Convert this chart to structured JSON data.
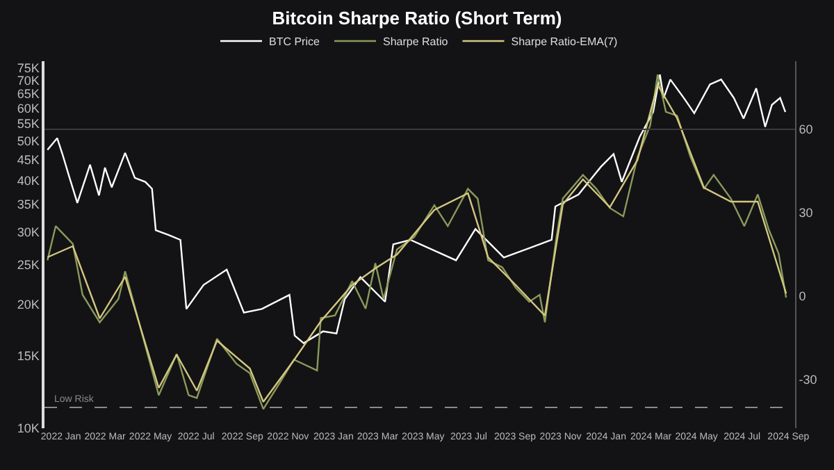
{
  "chart_data": {
    "type": "line",
    "title": "Bitcoin Sharpe Ratio (Short Term)",
    "xlim": [
      "2021-12-10",
      "2024-09-10"
    ],
    "xticks": [
      {
        "value": "2022-01-01",
        "label": "2022 Jan"
      },
      {
        "value": "2022-03-01",
        "label": "2022 Mar"
      },
      {
        "value": "2022-05-01",
        "label": "2022 May"
      },
      {
        "value": "2022-07-01",
        "label": "2022 Jul"
      },
      {
        "value": "2022-09-01",
        "label": "2022 Sep"
      },
      {
        "value": "2022-11-01",
        "label": "2022 Nov"
      },
      {
        "value": "2023-01-01",
        "label": "2023 Jan"
      },
      {
        "value": "2023-03-01",
        "label": "2023 Mar"
      },
      {
        "value": "2023-05-01",
        "label": "2023 May"
      },
      {
        "value": "2023-07-01",
        "label": "2023 Jul"
      },
      {
        "value": "2023-09-01",
        "label": "2023 Sep"
      },
      {
        "value": "2023-11-01",
        "label": "2023 Nov"
      },
      {
        "value": "2024-01-01",
        "label": "2024 Jan"
      },
      {
        "value": "2024-03-01",
        "label": "2024 Mar"
      },
      {
        "value": "2024-05-01",
        "label": "2024 May"
      },
      {
        "value": "2024-07-01",
        "label": "2024 Jul"
      },
      {
        "value": "2024-09-01",
        "label": "2024 Sep"
      }
    ],
    "log": true,
    "ylim": [
      10000,
      78000
    ],
    "yticks": [
      {
        "value": 10000,
        "label": "10K"
      },
      {
        "value": 15000,
        "label": "15K"
      },
      {
        "value": 20000,
        "label": "20K"
      },
      {
        "value": 25000,
        "label": "25K"
      },
      {
        "value": 30000,
        "label": "30K"
      },
      {
        "value": 35000,
        "label": "35K"
      },
      {
        "value": 40000,
        "label": "40K"
      },
      {
        "value": 45000,
        "label": "45K"
      },
      {
        "value": 50000,
        "label": "50K"
      },
      {
        "value": 55000,
        "label": "55K"
      },
      {
        "value": 60000,
        "label": "60K"
      },
      {
        "value": 65000,
        "label": "65K"
      },
      {
        "value": 70000,
        "label": "70K"
      },
      {
        "value": 75000,
        "label": "75K"
      }
    ],
    "y2lim": [
      -47.5,
      84.5
    ],
    "y2ticks": [
      -30,
      0,
      30,
      60
    ],
    "grid": false,
    "legend": "top",
    "ref_lines": [
      {
        "axis": "y2",
        "value": -40,
        "label": "Low Risk",
        "color": "#8a8a8a",
        "line_style": "dashed"
      },
      {
        "axis": "y2",
        "value": 60,
        "color": "#3a3a3e",
        "line_style": "solid"
      }
    ],
    "series": [
      {
        "name": "BTC Price",
        "color": "#ffffff",
        "x": [
          "2021-12-14",
          "2021-12-27",
          "2022-01-03",
          "2022-01-11",
          "2022-01-23",
          "2022-02-09",
          "2022-02-21",
          "2022-03-01",
          "2022-03-10",
          "2022-03-28",
          "2022-04-10",
          "2022-04-24",
          "2022-05-03",
          "2022-05-08",
          "2022-05-25",
          "2022-06-10",
          "2022-06-18",
          "2022-07-11",
          "2022-08-11",
          "2022-09-03",
          "2022-09-27",
          "2022-11-03",
          "2022-11-10",
          "2022-11-22",
          "2022-12-18",
          "2023-01-05",
          "2023-01-16",
          "2023-02-06",
          "2023-03-11",
          "2023-03-22",
          "2023-04-14",
          "2023-06-14",
          "2023-07-10",
          "2023-08-17",
          "2023-10-20",
          "2023-10-25",
          "2023-11-25",
          "2023-12-25",
          "2024-01-11",
          "2024-01-22",
          "2024-02-15",
          "2024-03-04",
          "2024-03-13",
          "2024-03-18",
          "2024-03-27",
          "2024-04-14",
          "2024-04-28",
          "2024-05-19",
          "2024-06-03",
          "2024-06-20",
          "2024-07-03",
          "2024-07-20",
          "2024-08-01",
          "2024-08-10",
          "2024-08-21",
          "2024-08-28"
        ],
        "values": [
          47500,
          50700,
          46400,
          41500,
          35300,
          43700,
          36800,
          43000,
          38500,
          46700,
          40600,
          39700,
          38200,
          30300,
          29500,
          28700,
          19500,
          22300,
          24300,
          19100,
          19500,
          21100,
          16800,
          16100,
          17200,
          17000,
          20600,
          23300,
          20300,
          28000,
          28700,
          25600,
          30500,
          26000,
          28700,
          34600,
          37000,
          43200,
          46400,
          39700,
          51100,
          58700,
          72400,
          63500,
          70400,
          63500,
          58300,
          68500,
          70400,
          63500,
          56600,
          67000,
          54000,
          61100,
          63500,
          58700
        ]
      },
      {
        "name": "Sharpe Ratio",
        "color": "#8a9a5a",
        "axis": "y2",
        "x": [
          "2021-12-14",
          "2021-12-25",
          "2022-01-17",
          "2022-01-30",
          "2022-02-22",
          "2022-03-19",
          "2022-03-28",
          "2022-04-24",
          "2022-05-12",
          "2022-06-05",
          "2022-06-21",
          "2022-07-02",
          "2022-07-29",
          "2022-08-24",
          "2022-09-11",
          "2022-09-29",
          "2022-10-22",
          "2022-11-09",
          "2022-12-10",
          "2022-12-15",
          "2023-01-03",
          "2023-01-26",
          "2023-02-13",
          "2023-02-26",
          "2023-03-09",
          "2023-03-27",
          "2023-04-19",
          "2023-05-16",
          "2023-06-03",
          "2023-06-30",
          "2023-07-13",
          "2023-07-27",
          "2023-08-15",
          "2023-09-02",
          "2023-09-20",
          "2023-10-04",
          "2023-10-11",
          "2023-10-26",
          "2023-11-04",
          "2023-12-01",
          "2023-12-19",
          "2024-01-06",
          "2024-01-24",
          "2024-02-12",
          "2024-02-29",
          "2024-03-10",
          "2024-03-21",
          "2024-04-05",
          "2024-04-23",
          "2024-05-11",
          "2024-05-24",
          "2024-06-16",
          "2024-07-04",
          "2024-07-22",
          "2024-08-06",
          "2024-08-19",
          "2024-08-29"
        ],
        "values": [
          12.9,
          25.2,
          18.8,
          0.5,
          -9.4,
          -1,
          8.9,
          -17.8,
          -35.6,
          -20.8,
          -35.6,
          -36.6,
          -15.3,
          -24.3,
          -27.7,
          -40.6,
          -30.7,
          -22.8,
          -26.7,
          -7.9,
          -6.9,
          5.4,
          -4.5,
          11.9,
          -1,
          16.8,
          21.3,
          32.7,
          25.2,
          38.6,
          35.1,
          12.9,
          10.4,
          3,
          -2,
          0.5,
          -9.4,
          20.3,
          35.1,
          43.6,
          38.6,
          31.7,
          28.7,
          50,
          61.4,
          79.7,
          66.3,
          64.9,
          50,
          38.6,
          43.6,
          35.1,
          25.2,
          36.6,
          23.8,
          15.3,
          -0.5
        ]
      },
      {
        "name": "Sharpe Ratio-EMA(7)",
        "color": "#d4c880",
        "axis": "y2",
        "x": [
          "2021-12-14",
          "2022-01-17",
          "2022-02-22",
          "2022-03-28",
          "2022-05-12",
          "2022-06-05",
          "2022-07-02",
          "2022-07-29",
          "2022-09-11",
          "2022-09-29",
          "2022-11-09",
          "2022-12-15",
          "2023-01-26",
          "2023-02-26",
          "2023-03-27",
          "2023-05-16",
          "2023-06-30",
          "2023-07-27",
          "2023-09-02",
          "2023-10-11",
          "2023-11-04",
          "2023-12-01",
          "2024-01-06",
          "2024-02-12",
          "2024-03-10",
          "2024-04-05",
          "2024-05-11",
          "2024-06-16",
          "2024-07-22",
          "2024-08-29"
        ],
        "values": [
          14,
          18,
          -8,
          7,
          -33,
          -21,
          -34,
          -16,
          -26,
          -38,
          -23,
          -9,
          4,
          10,
          15,
          31,
          37,
          14,
          4,
          -7,
          33,
          42,
          32,
          49,
          76,
          64,
          39,
          34,
          34,
          1
        ]
      }
    ]
  }
}
